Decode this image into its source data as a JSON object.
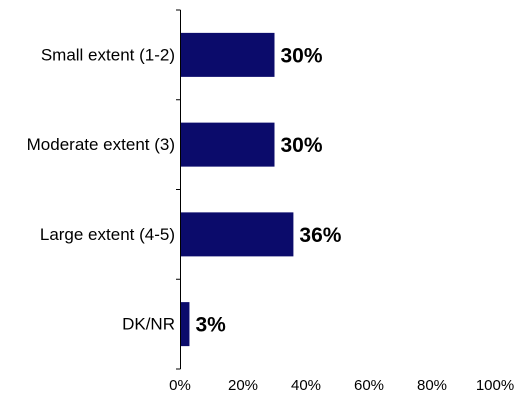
{
  "chart_data": {
    "type": "bar",
    "orientation": "horizontal",
    "title": "",
    "xlabel": "",
    "ylabel": "",
    "categories": [
      "Small extent (1-2)",
      "Moderate extent (3)",
      "Large extent (4-5)",
      "DK/NR"
    ],
    "values": [
      30,
      30,
      36,
      3
    ],
    "value_labels": [
      "30%",
      "30%",
      "36%",
      "3%"
    ],
    "x_ticks": [
      "0%",
      "20%",
      "40%",
      "60%",
      "80%",
      "100%"
    ],
    "xlim": [
      0,
      100
    ],
    "grid": false,
    "legend": "none",
    "bar_color": "#0b0b6b"
  }
}
